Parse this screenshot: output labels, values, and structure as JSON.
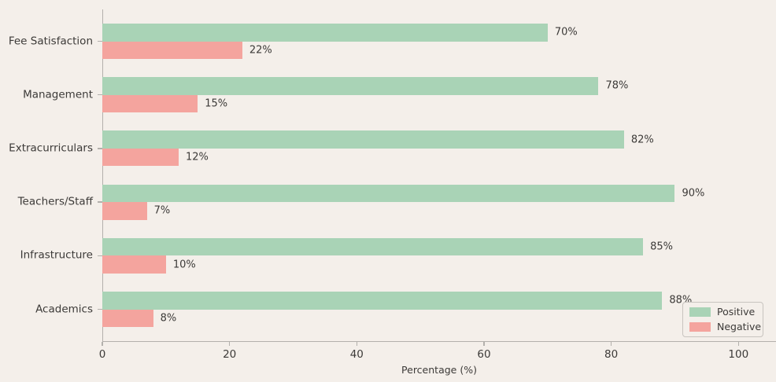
{
  "figure": {
    "background_color": "#f4efea",
    "axis_color": "#b3b0ac",
    "text_color": "#3c3a38"
  },
  "chart_data": {
    "type": "bar",
    "orientation": "horizontal",
    "title": "",
    "xlabel": "Percentage (%)",
    "ylabel": "",
    "categories": [
      "Fee Satisfaction",
      "Management",
      "Extracurriculars",
      "Teachers/Staff",
      "Infrastructure",
      "Academics"
    ],
    "series": [
      {
        "name": "Positive",
        "color": "#a9d3b6",
        "values": [
          70,
          78,
          82,
          90,
          85,
          88
        ]
      },
      {
        "name": "Negative",
        "color": "#f4a49e",
        "values": [
          22,
          15,
          12,
          7,
          10,
          8
        ]
      }
    ],
    "value_labels": {
      "Positive": [
        "70%",
        "78%",
        "82%",
        "90%",
        "85%",
        "88%"
      ],
      "Negative": [
        "22%",
        "15%",
        "12%",
        "7%",
        "10%",
        "8%"
      ]
    },
    "x_ticks": [
      0,
      20,
      40,
      60,
      80,
      100
    ],
    "xlim": [
      0,
      105.9
    ],
    "grid": false,
    "legend": {
      "position": "lower right",
      "entries": [
        "Positive",
        "Negative"
      ]
    }
  }
}
